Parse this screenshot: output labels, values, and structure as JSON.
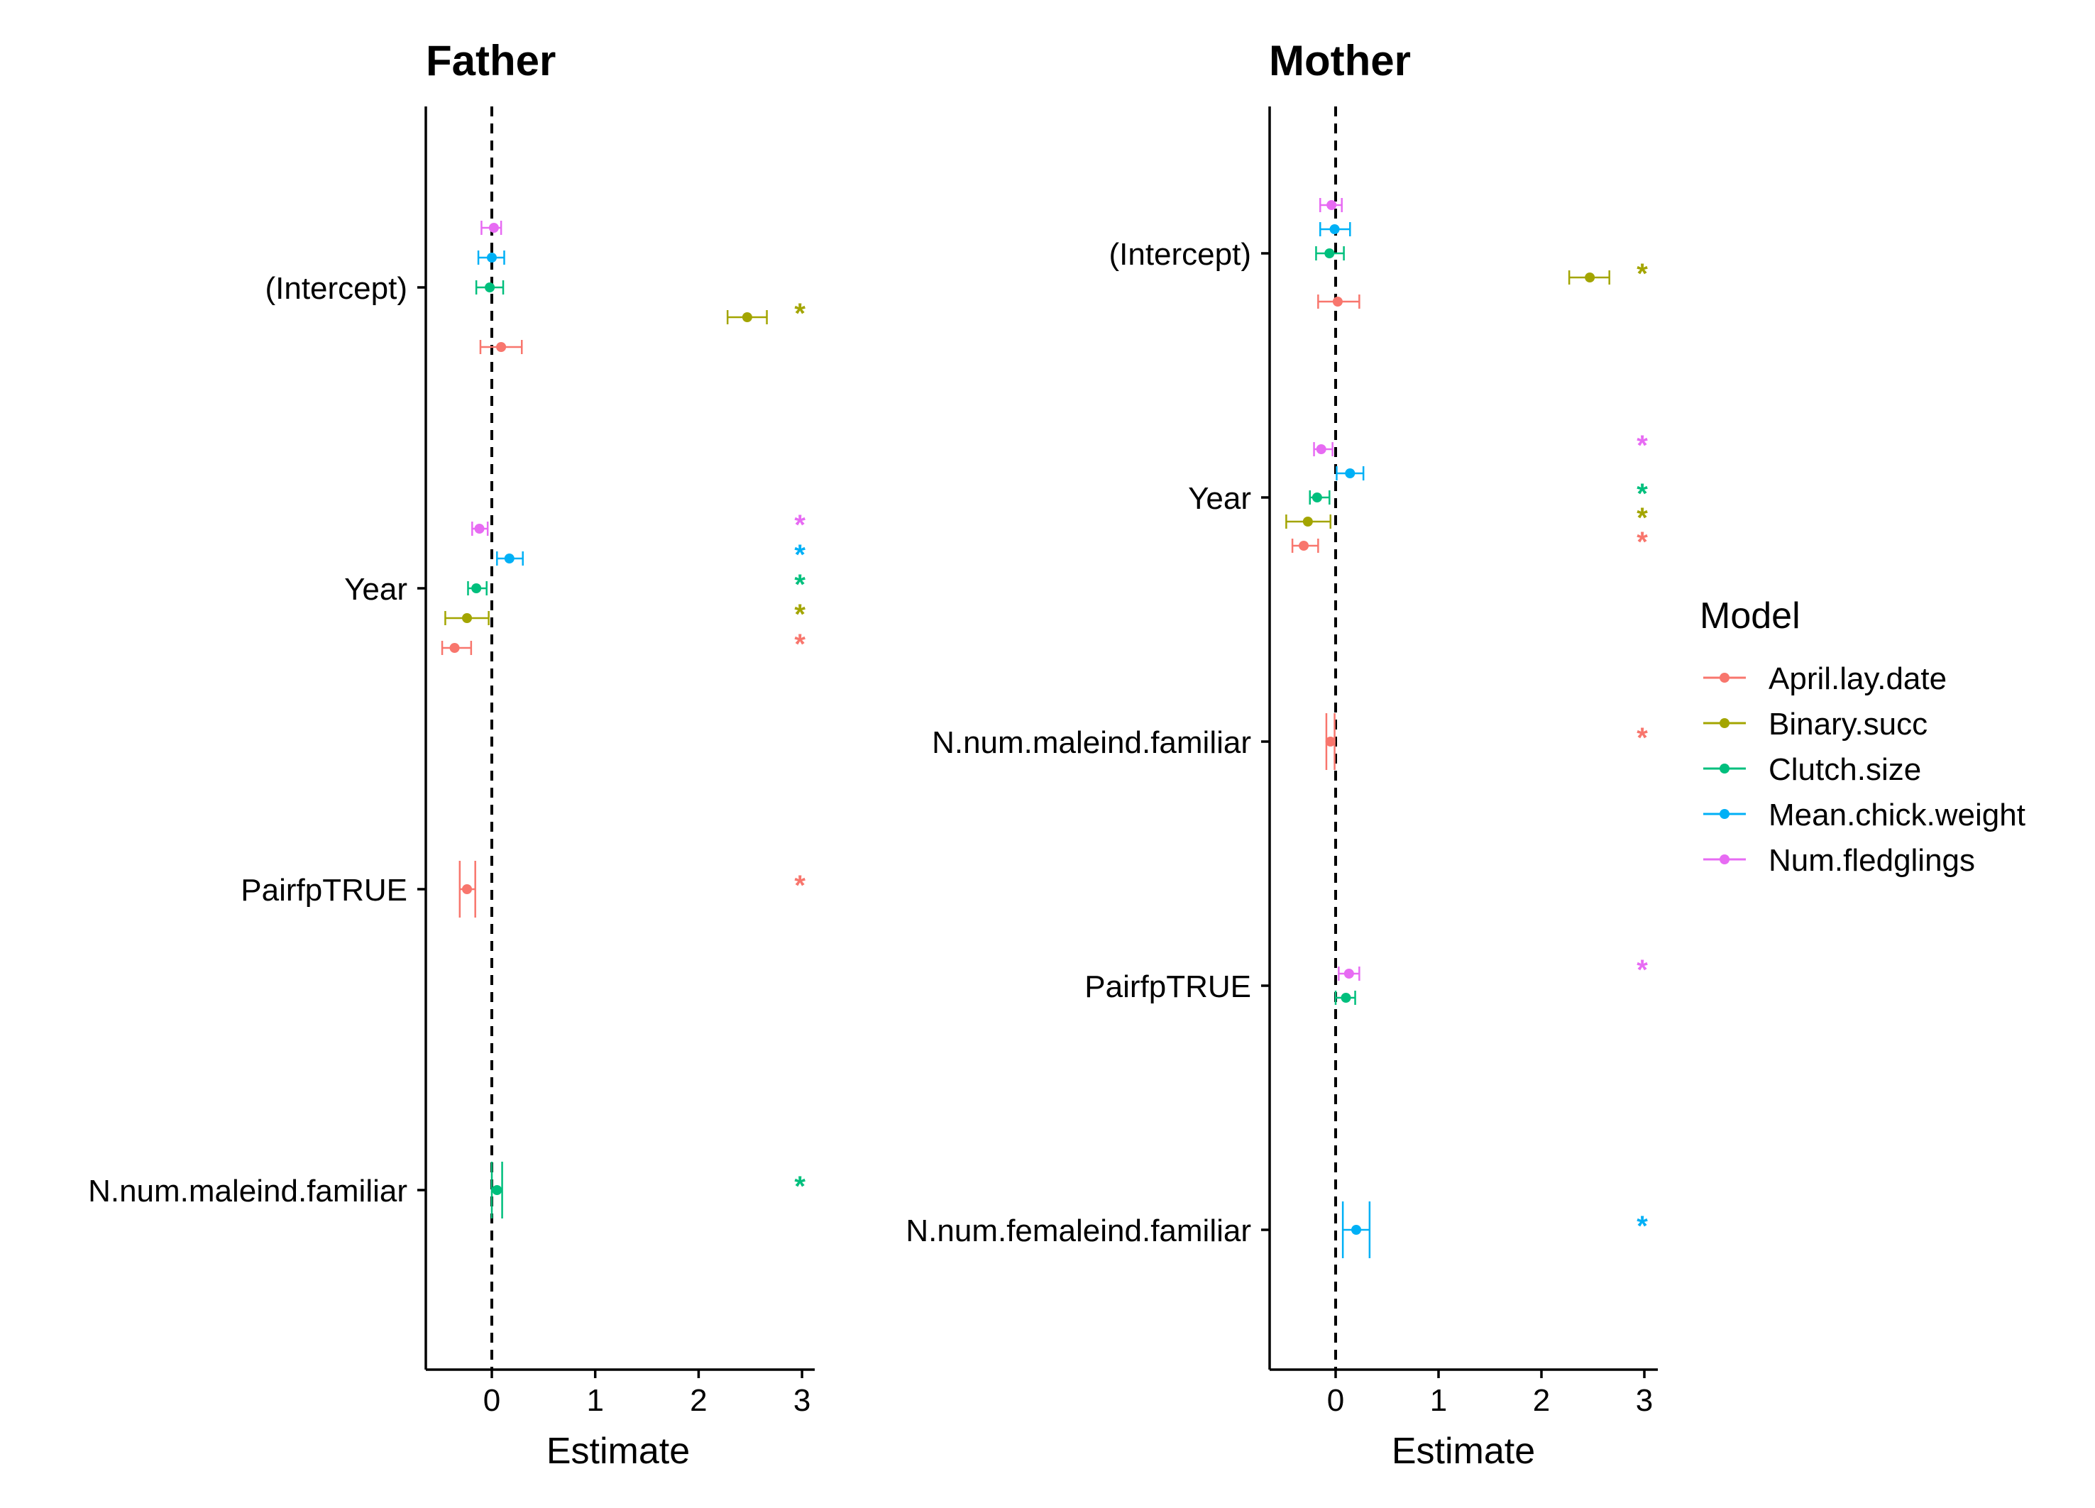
{
  "chart_data": [
    {
      "type": "scatter",
      "title": "Father",
      "xlabel": "Estimate",
      "ylabel": "",
      "xlim": [
        -0.65,
        3.15
      ],
      "x_ticks": [
        "0",
        "1",
        "2",
        "3"
      ],
      "reference_line_x": 0,
      "terms": [
        "(Intercept)",
        "Year",
        "PairfpTRUE",
        "N.num.maleind.familiar"
      ],
      "points": [
        {
          "term": "(Intercept)",
          "model": "Num.fledglings",
          "estimate": 0.02,
          "low": -0.1,
          "high": 0.09,
          "sig": false
        },
        {
          "term": "(Intercept)",
          "model": "Mean.chick.weight",
          "estimate": 0.0,
          "low": -0.13,
          "high": 0.12,
          "sig": false
        },
        {
          "term": "(Intercept)",
          "model": "Clutch.size",
          "estimate": -0.02,
          "low": -0.15,
          "high": 0.11,
          "sig": false
        },
        {
          "term": "(Intercept)",
          "model": "Binary.succ",
          "estimate": 2.47,
          "low": 2.28,
          "high": 2.66,
          "sig": true
        },
        {
          "term": "(Intercept)",
          "model": "April.lay.date",
          "estimate": 0.09,
          "low": -0.11,
          "high": 0.29,
          "sig": false
        },
        {
          "term": "Year",
          "model": "Num.fledglings",
          "estimate": -0.12,
          "low": -0.19,
          "high": -0.04,
          "sig": true
        },
        {
          "term": "Year",
          "model": "Mean.chick.weight",
          "estimate": 0.17,
          "low": 0.05,
          "high": 0.3,
          "sig": true
        },
        {
          "term": "Year",
          "model": "Clutch.size",
          "estimate": -0.15,
          "low": -0.23,
          "high": -0.05,
          "sig": true
        },
        {
          "term": "Year",
          "model": "Binary.succ",
          "estimate": -0.24,
          "low": -0.45,
          "high": -0.03,
          "sig": true
        },
        {
          "term": "Year",
          "model": "April.lay.date",
          "estimate": -0.36,
          "low": -0.48,
          "high": -0.2,
          "sig": true
        },
        {
          "term": "PairfpTRUE",
          "model": "April.lay.date",
          "estimate": -0.24,
          "low": -0.31,
          "high": -0.16,
          "sig": true
        },
        {
          "term": "N.num.maleind.familiar",
          "model": "Clutch.size",
          "estimate": 0.05,
          "low": 0.0,
          "high": 0.1,
          "sig": true
        }
      ]
    },
    {
      "type": "scatter",
      "title": "Mother",
      "xlabel": "Estimate",
      "ylabel": "",
      "xlim": [
        -0.65,
        3.15
      ],
      "x_ticks": [
        "0",
        "1",
        "2",
        "3"
      ],
      "reference_line_x": 0,
      "terms": [
        "(Intercept)",
        "Year",
        "N.num.maleind.familiar",
        "PairfpTRUE",
        "N.num.femaleind.familiar"
      ],
      "points": [
        {
          "term": "(Intercept)",
          "model": "Num.fledglings",
          "estimate": -0.04,
          "low": -0.15,
          "high": 0.06,
          "sig": false
        },
        {
          "term": "(Intercept)",
          "model": "Mean.chick.weight",
          "estimate": -0.01,
          "low": -0.15,
          "high": 0.14,
          "sig": false
        },
        {
          "term": "(Intercept)",
          "model": "Clutch.size",
          "estimate": -0.06,
          "low": -0.19,
          "high": 0.08,
          "sig": false
        },
        {
          "term": "(Intercept)",
          "model": "Binary.succ",
          "estimate": 2.47,
          "low": 2.27,
          "high": 2.66,
          "sig": true
        },
        {
          "term": "(Intercept)",
          "model": "April.lay.date",
          "estimate": 0.02,
          "low": -0.17,
          "high": 0.23,
          "sig": false
        },
        {
          "term": "Year",
          "model": "Num.fledglings",
          "estimate": -0.14,
          "low": -0.21,
          "high": -0.03,
          "sig": true
        },
        {
          "term": "Year",
          "model": "Mean.chick.weight",
          "estimate": 0.14,
          "low": 0.01,
          "high": 0.27,
          "sig": false
        },
        {
          "term": "Year",
          "model": "Clutch.size",
          "estimate": -0.18,
          "low": -0.25,
          "high": -0.06,
          "sig": true
        },
        {
          "term": "Year",
          "model": "Binary.succ",
          "estimate": -0.27,
          "low": -0.48,
          "high": -0.05,
          "sig": true
        },
        {
          "term": "Year",
          "model": "April.lay.date",
          "estimate": -0.31,
          "low": -0.42,
          "high": -0.17,
          "sig": true
        },
        {
          "term": "N.num.maleind.familiar",
          "model": "April.lay.date",
          "estimate": -0.05,
          "low": -0.09,
          "high": -0.01,
          "sig": true
        },
        {
          "term": "PairfpTRUE",
          "model": "Num.fledglings",
          "estimate": 0.13,
          "low": 0.03,
          "high": 0.23,
          "sig": true
        },
        {
          "term": "PairfpTRUE",
          "model": "Clutch.size",
          "estimate": 0.1,
          "low": 0.0,
          "high": 0.19,
          "sig": false
        },
        {
          "term": "N.num.femaleind.familiar",
          "model": "Mean.chick.weight",
          "estimate": 0.2,
          "low": 0.07,
          "high": 0.33,
          "sig": true
        }
      ]
    }
  ],
  "legend": {
    "title": "Model",
    "position": "right",
    "items": [
      {
        "label": "April.lay.date",
        "color": "#F8766D"
      },
      {
        "label": "Binary.succ",
        "color": "#A3A500"
      },
      {
        "label": "Clutch.size",
        "color": "#00BF7D"
      },
      {
        "label": "Mean.chick.weight",
        "color": "#00B0F6"
      },
      {
        "label": "Num.fledglings",
        "color": "#E76BF3"
      }
    ]
  },
  "significance_marker": "*"
}
